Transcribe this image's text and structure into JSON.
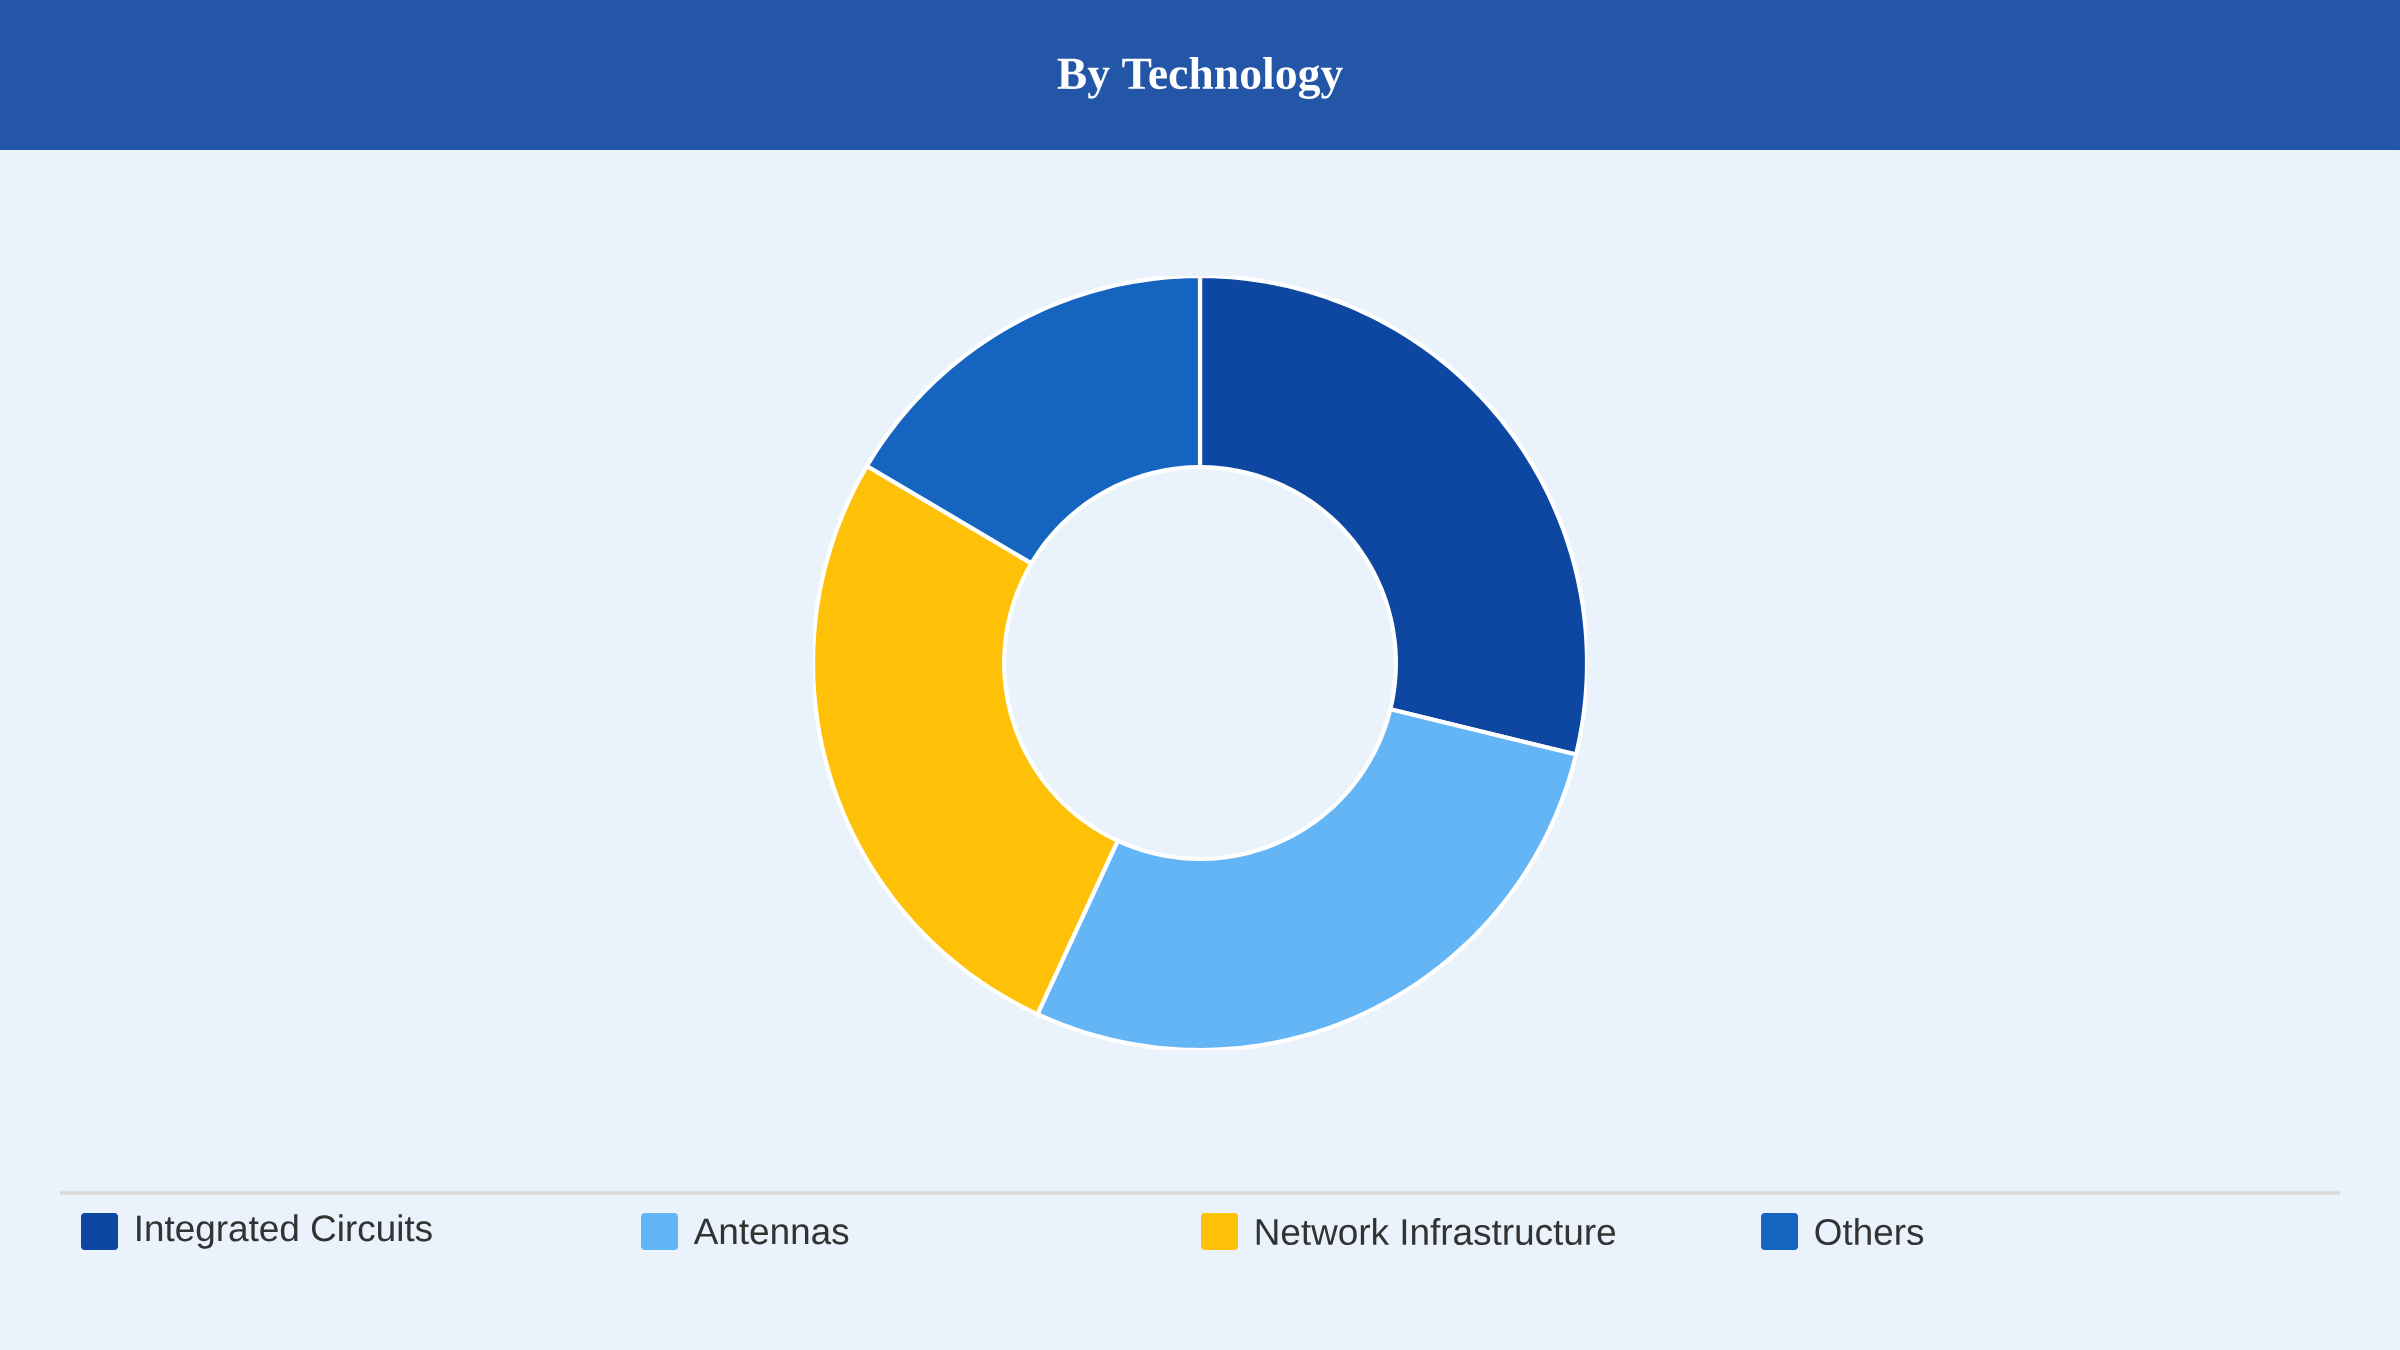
{
  "chart_data": {
    "type": "donut",
    "title": "By Technology",
    "categories": [
      "Integrated Circuits",
      "Antennas",
      "Network Infrastructure",
      "Others"
    ],
    "values": [
      28.8,
      28.1,
      26.6,
      16.5
    ],
    "colors": [
      "#0d47a1",
      "#64b5f6",
      "#ffc107",
      "#1565c0"
    ],
    "legend": "bottom"
  }
}
